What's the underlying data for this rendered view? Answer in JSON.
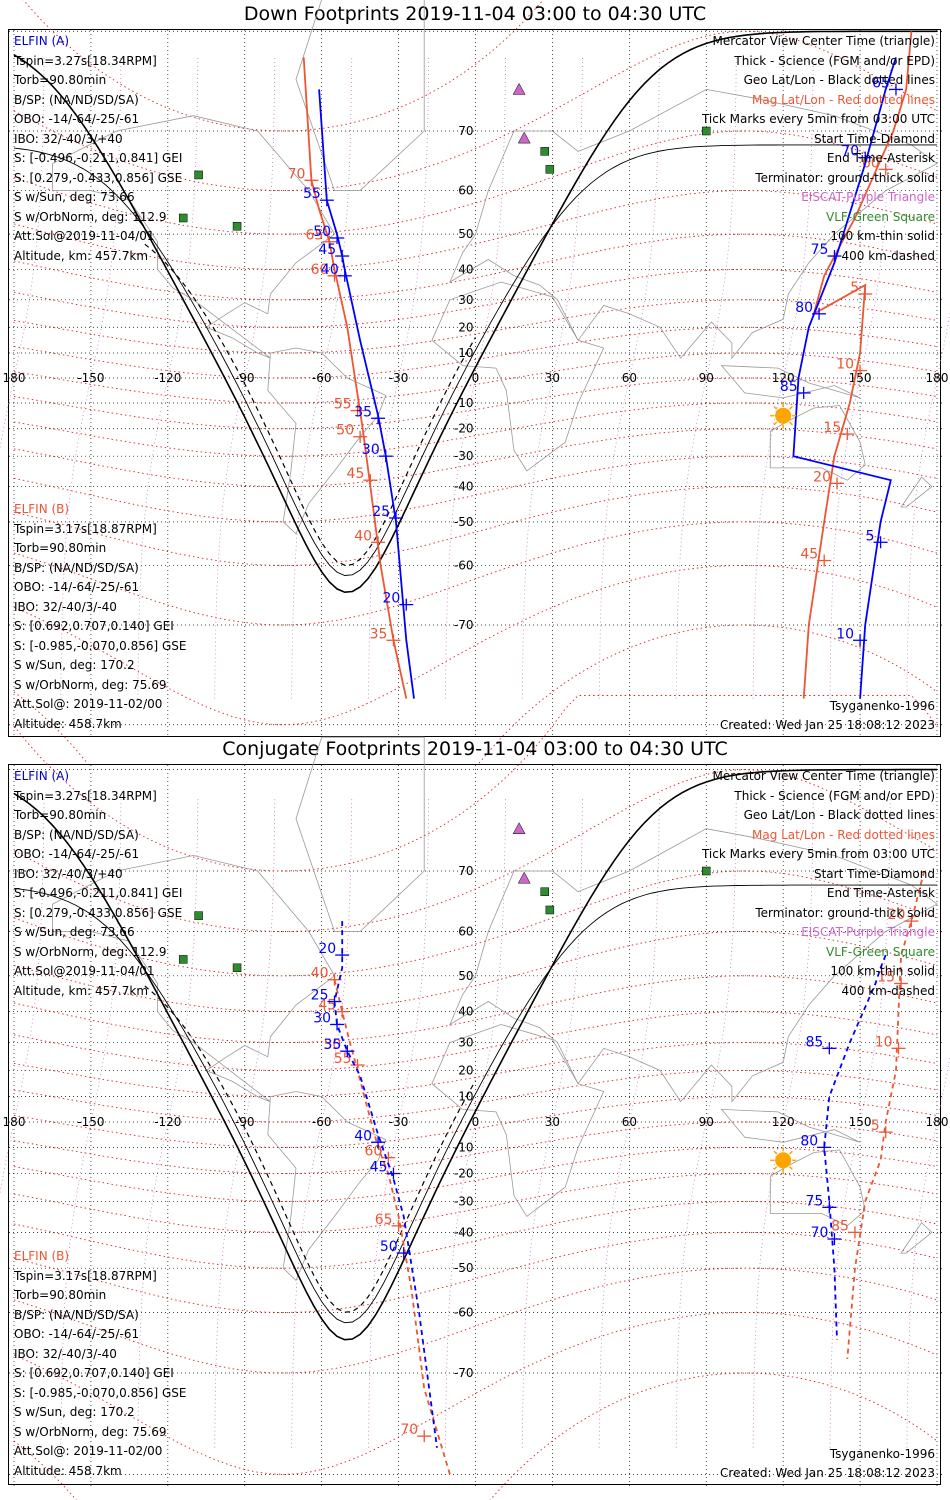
{
  "panels": [
    {
      "title": "Down Footprints 2019-11-04 03:00 to 04:30 UTC",
      "elfin_a": {
        "header": "ELFIN (A)",
        "lines": [
          "Tspin=3.27s[18.34RPM]",
          "Torb=90.80min",
          "B/SP: (NA/ND/SD/SA)",
          "OBO: -14/-64/-25/-61",
          "IBO: 32/-40/3/+40",
          "S: [-0.496,-0.211,0.841] GEI",
          "S: [0.279,-0.433,0.856] GSE",
          "S w/Sun, deg: 73.66",
          "S w/OrbNorm, deg: 112.9",
          "Att.Sol@2019-11-04/01",
          "Altitude, km: 457.7km"
        ]
      },
      "elfin_b": {
        "header": "ELFIN (B)",
        "lines": [
          "Tspin=3.17s[18.87RPM]",
          "Torb=90.80min",
          "B/SP: (NA/ND/SD/SA)",
          "OBO: -14/-64/-25/-61",
          "IBO: 32/-40/3/-40",
          "S: [0.692,0.707,0.140] GEI",
          "S: [-0.985,-0.070,0.856] GSE",
          "S w/Sun, deg: 170.2",
          "S w/OrbNorm, deg: 75.69",
          "Att.Sol@: 2019-11-02/00",
          "Altitude: 458.7km"
        ]
      },
      "legend": [
        "Mercator View Center Time (triangle)",
        "Thick - Science (FGM and/or EPD)",
        "Geo Lat/Lon - Black dotted lines",
        "Mag Lat/Lon - Red dotted lines",
        "Tick Marks every 5min from 03:00 UTC",
        "Start Time-Diamond",
        "End Time-Asterisk",
        "Terminator: ground-thick solid",
        "EISCAT-Purple Triangle",
        "VLF-Green Square",
        "100 km-thin solid",
        "400 km-dashed"
      ],
      "model": "Tsyganenko-1996",
      "created": "Created: Wed Jan 25 18:08:12 2023",
      "track_a_segments": [
        {
          "points": [
            [
              -61,
              75
            ],
            [
              -58,
              58
            ],
            [
              -54,
              50
            ],
            [
              -52,
              44
            ],
            [
              -51,
              40
            ],
            [
              -45,
              15
            ],
            [
              -38,
              -15
            ],
            [
              -35,
              -30
            ],
            [
              -31,
              -50
            ],
            [
              -27,
              -72
            ],
            [
              -24,
              -78
            ]
          ],
          "ticks": [
            {
              "label": "55",
              "lat": 58,
              "lon": -58
            },
            {
              "label": "50",
              "lat": 49,
              "lon": -54
            },
            {
              "label": "45",
              "lat": 44,
              "lon": -52
            },
            {
              "label": "40",
              "lat": 38,
              "lon": -51
            },
            {
              "label": "35",
              "lat": -16,
              "lon": -38
            },
            {
              "label": "30",
              "lat": -30,
              "lon": -35
            },
            {
              "label": "25",
              "lat": -49,
              "lon": -31
            },
            {
              "label": "20",
              "lat": -67,
              "lon": -27
            }
          ]
        },
        {
          "points": [
            [
              164,
              78
            ],
            [
              160,
              75
            ],
            [
              152,
              65
            ],
            [
              140,
              42
            ],
            [
              130,
              20
            ],
            [
              126,
              0
            ],
            [
              124,
              -30
            ],
            [
              162,
              -38
            ],
            [
              158,
              -50
            ],
            [
              152,
              -70
            ],
            [
              150,
              -78
            ]
          ],
          "ticks": [
            {
              "label": "65",
              "lat": 75,
              "lon": 164
            },
            {
              "label": "70",
              "lat": 66,
              "lon": 152
            },
            {
              "label": "75",
              "lat": 44,
              "lon": 140
            },
            {
              "label": "80",
              "lat": 25,
              "lon": 134
            },
            {
              "label": "85",
              "lat": -6,
              "lon": 128
            },
            {
              "label": "5",
              "lat": -55,
              "lon": 158
            },
            {
              "label": "10",
              "lat": -72,
              "lon": 150
            }
          ]
        }
      ],
      "track_b_segments": [
        {
          "points": [
            [
              -67,
              78
            ],
            [
              -64,
              62
            ],
            [
              -61,
              56
            ],
            [
              -57,
              48
            ],
            [
              -55,
              40
            ],
            [
              -50,
              20
            ],
            [
              -47,
              0
            ],
            [
              -44,
              -20
            ],
            [
              -41,
              -40
            ],
            [
              -37,
              -60
            ],
            [
              -32,
              -72
            ],
            [
              -27,
              -78
            ]
          ],
          "ticks": [
            {
              "label": "70",
              "lat": 62,
              "lon": -64
            },
            {
              "label": "65",
              "lat": 48,
              "lon": -57
            },
            {
              "label": "60",
              "lat": 38,
              "lon": -55
            },
            {
              "label": "55",
              "lat": -13,
              "lon": -46
            },
            {
              "label": "50",
              "lat": -23,
              "lon": -45
            },
            {
              "label": "45",
              "lat": -38,
              "lon": -41
            },
            {
              "label": "40",
              "lat": -55,
              "lon": -38
            },
            {
              "label": "35",
              "lat": -72,
              "lon": -32
            }
          ]
        },
        {
          "points": [
            [
              170,
              80
            ],
            [
              168,
              75
            ],
            [
              163,
              70
            ],
            [
              148,
              54
            ],
            [
              143,
              48
            ],
            [
              136,
              38
            ],
            [
              132,
              25
            ],
            [
              152,
              35
            ],
            [
              150,
              10
            ],
            [
              146,
              -10
            ],
            [
              140,
              -30
            ],
            [
              136,
              -50
            ],
            [
              130,
              -70
            ],
            [
              128,
              -78
            ]
          ],
          "ticks": [
            {
              "label": "60",
              "lat": 64,
              "lon": 160
            },
            {
              "label": "5",
              "lat": 32,
              "lon": 152
            },
            {
              "label": "10",
              "lat": 3,
              "lon": 150
            },
            {
              "label": "15",
              "lat": -22,
              "lon": 145
            },
            {
              "label": "20",
              "lat": -39,
              "lon": 141
            },
            {
              "label": "45",
              "lat": -59,
              "lon": 136
            }
          ]
        }
      ],
      "eiscat": [
        [
          17,
          75
        ],
        [
          19,
          69
        ]
      ],
      "vlf": [
        [
          -114,
          54
        ],
        [
          -93,
          52
        ],
        [
          -108,
          63
        ],
        [
          27,
          67
        ],
        [
          29,
          64
        ],
        [
          90,
          70
        ]
      ],
      "sun": {
        "lat": -15,
        "lon": 120
      }
    },
    {
      "title": "Conjugate Footprints 2019-11-04 03:00 to 04:30 UTC",
      "elfin_a": {
        "header": "ELFIN (A)",
        "lines": [
          "Tspin=3.27s[18.34RPM]",
          "Torb=90.80min",
          "B/SP: (NA/ND/SD/SA)",
          "OBO: -14/-64/-25/-61",
          "IBO: 32/-40/3/+40",
          "S: [-0.496,-0.211,0.841] GEI",
          "S: [0.279,-0.433,0.856] GSE",
          "S w/Sun, deg: 73.66",
          "S w/OrbNorm, deg: 112.9",
          "Att.Sol@2019-11-04/01",
          "Altitude, km: 457.7km"
        ]
      },
      "elfin_b": {
        "header": "ELFIN (B)",
        "lines": [
          "Tspin=3.17s[18.87RPM]",
          "Torb=90.80min",
          "B/SP: (NA/ND/SD/SA)",
          "OBO: -14/-64/-25/-61",
          "IBO: 32/-40/3/-40",
          "S: [0.692,0.707,0.140] GEI",
          "S: [-0.985,-0.070,0.856] GSE",
          "S w/Sun, deg: 170.2",
          "S w/OrbNorm, deg: 75.69",
          "Att.Sol@: 2019-11-02/00",
          "Altitude: 458.7km"
        ]
      },
      "legend": [
        "Mercator View Center Time (triangle)",
        "Thick - Science (FGM and/or EPD)",
        "Geo Lat/Lon - Black dotted lines",
        "Mag Lat/Lon - Red dotted lines",
        "Tick Marks every 5min from 03:00 UTC",
        "Start Time-Diamond",
        "End Time-Asterisk",
        "Terminator: ground-thick solid",
        "EISCAT-Purple Triangle",
        "VLF-Green Square",
        "100 km-thin solid",
        "400 km-dashed"
      ],
      "model": "Tsyganenko-1996",
      "created": "Created: Wed Jan 25 18:08:12 2023",
      "track_a_segments": [
        {
          "points": [
            [
              -52,
              62
            ],
            [
              -52,
              56
            ],
            [
              -52,
              52
            ],
            [
              -55,
              43
            ],
            [
              -54,
              36
            ],
            [
              -50,
              27
            ],
            [
              -45,
              18
            ],
            [
              -38,
              -5
            ],
            [
              -32,
              -22
            ],
            [
              -28,
              -35
            ],
            [
              -22,
              -60
            ],
            [
              -15,
              -78
            ]
          ],
          "ticks": [
            {
              "label": "20",
              "lat": 55,
              "lon": -52
            },
            {
              "label": "25",
              "lat": 43,
              "lon": -55
            },
            {
              "label": "30",
              "lat": 36,
              "lon": -54
            },
            {
              "label": "35",
              "lat": 27,
              "lon": -50
            },
            {
              "label": "40",
              "lat": -8,
              "lon": -38
            },
            {
              "label": "45",
              "lat": -20,
              "lon": -32
            },
            {
              "label": "50",
              "lat": -46,
              "lon": -28
            }
          ]
        },
        {
          "points": [
            [
              160,
              55
            ],
            [
              158,
              52
            ],
            [
              156,
              48
            ],
            [
              146,
              30
            ],
            [
              138,
              10
            ],
            [
              136,
              -10
            ],
            [
              138,
              -30
            ],
            [
              140,
              -50
            ],
            [
              141,
              -65
            ]
          ],
          "ticks": [
            {
              "label": "85",
              "lat": 28,
              "lon": 138
            },
            {
              "label": "80",
              "lat": -10,
              "lon": 136
            },
            {
              "label": "75",
              "lat": -32,
              "lon": 138
            },
            {
              "label": "70",
              "lat": -42,
              "lon": 140
            }
          ]
        }
      ],
      "track_b_segments": [
        {
          "points": [
            [
              -55,
              49
            ],
            [
              -52,
              40
            ],
            [
              -49,
              30
            ],
            [
              -46,
              20
            ],
            [
              -42,
              5
            ],
            [
              -38,
              -10
            ],
            [
              -34,
              -20
            ],
            [
              -30,
              -35
            ],
            [
              -25,
              -55
            ],
            [
              -20,
              -72
            ],
            [
              -10,
              -80
            ]
          ],
          "ticks": [
            {
              "label": "40",
              "lat": 49,
              "lon": -55
            },
            {
              "label": "45",
              "lat": 40,
              "lon": -52
            },
            {
              "label": "50",
              "lat": 27,
              "lon": -50
            },
            {
              "label": "55",
              "lat": 22,
              "lon": -46
            },
            {
              "label": "60",
              "lat": -14,
              "lon": -34
            },
            {
              "label": "65",
              "lat": -38,
              "lon": -30
            },
            {
              "label": "70",
              "lat": -77,
              "lon": -20
            }
          ]
        },
        {
          "points": [
            [
              175,
              70
            ],
            [
              170,
              62
            ],
            [
              166,
              55
            ],
            [
              165,
              40
            ],
            [
              164,
              20
            ],
            [
              160,
              0
            ],
            [
              158,
              -15
            ],
            [
              152,
              -30
            ],
            [
              148,
              -50
            ],
            [
              145,
              -68
            ]
          ],
          "ticks": [
            {
              "label": "20",
              "lat": 62,
              "lon": 170
            },
            {
              "label": "15",
              "lat": 48,
              "lon": 166
            },
            {
              "label": "10",
              "lat": 28,
              "lon": 165
            },
            {
              "label": "5",
              "lat": -4,
              "lon": 160
            },
            {
              "label": "85",
              "lat": -40,
              "lon": 148
            }
          ]
        }
      ],
      "eiscat": [
        [
          17,
          75
        ],
        [
          19,
          69
        ]
      ],
      "vlf": [
        [
          -114,
          54
        ],
        [
          -93,
          52
        ],
        [
          -108,
          63
        ],
        [
          27,
          67
        ],
        [
          29,
          64
        ],
        [
          90,
          70
        ]
      ],
      "sun": {
        "lat": -15,
        "lon": 120
      }
    }
  ],
  "axis": {
    "lon_ticks": [
      "180",
      "-150",
      "-120",
      "-90",
      "-60",
      "-30",
      "0",
      "30",
      "60",
      "90",
      "120",
      "150",
      "180"
    ],
    "lat_labels": [
      "70",
      "60",
      "50",
      "40",
      "30",
      "20",
      "10",
      "-10",
      "-20",
      "-30",
      "-40",
      "-50",
      "-60",
      "-70"
    ]
  },
  "colors": {
    "elfin_a": "#0000ff",
    "elfin_b": "#ee5533",
    "mag_grid": "#dd2222",
    "geo_grid": "#000000",
    "eiscat": "#cc66cc",
    "vlf": "#2e8b2e",
    "sun": "#ffa500"
  }
}
